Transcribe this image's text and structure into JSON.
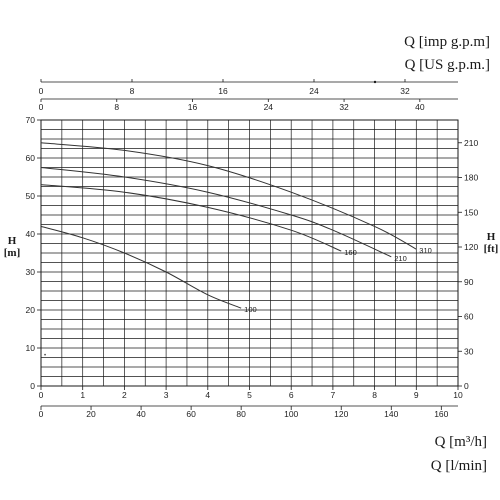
{
  "chart_data": {
    "type": "line",
    "title": "",
    "unit_labels": {
      "top_imp": "Q [imp g.p.m]",
      "top_us": "Q [US g.p.m.]",
      "bottom_m3h": "Q [m³/h]",
      "bottom_lmin": "Q [l/min]"
    },
    "y_left_label": {
      "title": "H",
      "unit": "[m]"
    },
    "y_right_label": {
      "title": "H",
      "unit": "[ft]"
    },
    "xlim": [
      0,
      10
    ],
    "ylim": [
      0,
      70
    ],
    "grid": true,
    "x_ticks_m3h": [
      "0",
      "1",
      "2",
      "3",
      "4",
      "5",
      "6",
      "7",
      "8",
      "9",
      "10"
    ],
    "y_ticks_m": [
      "0",
      "10",
      "20",
      "30",
      "40",
      "50",
      "60",
      "70"
    ],
    "y_ticks_ft": [
      "0",
      "30",
      "60",
      "90",
      "120",
      "150",
      "180",
      "210"
    ],
    "x_ticks_lmin": [
      "0",
      "20",
      "40",
      "60",
      "80",
      "100",
      "120",
      "140",
      "160"
    ],
    "x_ticks_imp": [
      "0",
      "8",
      "16",
      "24",
      "32"
    ],
    "x_ticks_us": [
      "0",
      "8",
      "16",
      "24",
      "32",
      "40"
    ],
    "series": [
      {
        "name": "310",
        "x": [
          0,
          2,
          4,
          6,
          8,
          9
        ],
        "y": [
          64,
          62,
          58,
          51,
          42,
          36
        ]
      },
      {
        "name": "210",
        "x": [
          0,
          2,
          4,
          6,
          7,
          8.4
        ],
        "y": [
          57.5,
          55,
          51,
          45,
          41,
          34
        ]
      },
      {
        "name": "160",
        "x": [
          0,
          2,
          4,
          6,
          7.2
        ],
        "y": [
          53,
          51,
          47,
          41,
          35.5
        ]
      },
      {
        "name": "100",
        "x": [
          0,
          1,
          2,
          3,
          4,
          4.8
        ],
        "y": [
          42,
          39,
          35,
          30,
          24,
          20.5
        ]
      }
    ]
  }
}
